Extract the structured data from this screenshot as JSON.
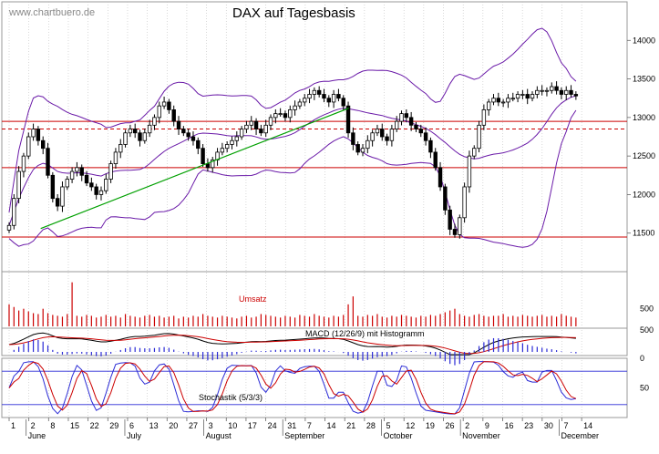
{
  "title": "DAX auf Tagesbasis",
  "watermark": "www.chartbuero.de",
  "chart_data": {
    "type": "candlestick",
    "title": "DAX auf Tagesbasis",
    "ylim": [
      11000,
      14500
    ],
    "price_ticks": [
      11500,
      12000,
      12500,
      13000,
      13500,
      14000
    ],
    "x_days": [
      "1",
      "2",
      "8",
      "15",
      "22",
      "29",
      "6",
      "13",
      "20",
      "27",
      "3",
      "10",
      "17",
      "24",
      "31",
      "7",
      "14",
      "21",
      "28",
      "5",
      "12",
      "19",
      "26",
      "2",
      "9",
      "16",
      "23",
      "30",
      "7",
      "14"
    ],
    "months": [
      {
        "label": "June",
        "day_index": 1
      },
      {
        "label": "July",
        "day_index": 6
      },
      {
        "label": "August",
        "day_index": 10
      },
      {
        "label": "September",
        "day_index": 14
      },
      {
        "label": "October",
        "day_index": 19
      },
      {
        "label": "November",
        "day_index": 23
      },
      {
        "label": "December",
        "day_index": 28
      }
    ],
    "horizontal_levels": [
      {
        "value": 12950,
        "style": "solid"
      },
      {
        "value": 12850,
        "style": "dashed"
      },
      {
        "value": 12350,
        "style": "solid"
      },
      {
        "value": 11450,
        "style": "solid"
      }
    ],
    "trendline": {
      "from": {
        "day_index": 1.6,
        "value": 11560
      },
      "to": {
        "day_index": 17.2,
        "value": 13120
      }
    },
    "closes": [
      11600,
      11950,
      12300,
      12500,
      12750,
      12850,
      12700,
      12600,
      12250,
      11950,
      11850,
      12100,
      12200,
      12300,
      12350,
      12250,
      12150,
      12100,
      12000,
      12050,
      12200,
      12400,
      12550,
      12650,
      12800,
      12850,
      12800,
      12700,
      12800,
      12900,
      13000,
      13150,
      13200,
      13100,
      12950,
      12850,
      12800,
      12750,
      12700,
      12600,
      12400,
      12350,
      12450,
      12550,
      12600,
      12650,
      12700,
      12750,
      12850,
      12900,
      12950,
      12850,
      12800,
      12900,
      13000,
      13050,
      13050,
      13000,
      13100,
      13150,
      13200,
      13250,
      13300,
      13350,
      13300,
      13250,
      13200,
      13300,
      13250,
      13150,
      12800,
      12650,
      12550,
      12600,
      12700,
      12800,
      12850,
      12750,
      12700,
      12850,
      12950,
      13050,
      13000,
      12900,
      12850,
      12800,
      12700,
      12550,
      12350,
      12100,
      11800,
      11550,
      11480,
      11700,
      12100,
      12500,
      12600,
      12900,
      13100,
      13200,
      13250,
      13200,
      13200,
      13250,
      13250,
      13300,
      13300,
      13250,
      13300,
      13350,
      13350,
      13350,
      13400,
      13350,
      13300,
      13350,
      13300,
      13280
    ],
    "volume": {
      "label": "Umsatz",
      "ticks": [
        500
      ],
      "values": [
        25,
        22,
        18,
        20,
        17,
        15,
        14,
        20,
        15,
        13,
        12,
        11,
        14,
        50,
        12,
        11,
        13,
        12,
        10,
        11,
        13,
        11,
        12,
        10,
        14,
        12,
        11,
        10,
        12,
        13,
        11,
        12,
        10,
        11,
        12,
        9,
        11,
        10,
        12,
        11,
        14,
        12,
        11,
        10,
        12,
        11,
        10,
        9,
        11,
        12,
        10,
        11,
        14,
        13,
        12,
        11,
        10,
        12,
        11,
        10,
        13,
        12,
        11,
        14,
        12,
        11,
        10,
        12,
        11,
        13,
        25,
        34,
        12,
        11,
        13,
        12,
        14,
        11,
        10,
        12,
        11,
        13,
        12,
        11,
        10,
        12,
        11,
        13,
        12,
        14,
        16,
        18,
        20,
        14,
        12,
        11,
        13,
        14,
        12,
        11,
        12,
        12,
        14,
        11,
        12,
        11,
        13,
        12,
        11,
        12,
        13,
        11,
        12,
        11,
        14,
        12,
        11,
        10
      ]
    },
    "macd": {
      "label": "MACD (12/26/9) mit Histogramm",
      "ticks": [
        500,
        0
      ]
    },
    "stochastic": {
      "label": "Stochastik (5/3/3)",
      "ticks": [
        50
      ],
      "upper_line": 80,
      "lower_line": 20
    },
    "colors": {
      "frame": "#999999",
      "candle": "#000000",
      "bollinger": "#6a1aa8",
      "level": "#cc0000",
      "trendline": "#00a000",
      "volume_bar": "#cc0000",
      "macd": "#000000",
      "signal": "#cc0000",
      "histogram": "#2b2bd6",
      "stoch_k": "#2b2bd6",
      "stoch_d": "#cc0000"
    }
  }
}
